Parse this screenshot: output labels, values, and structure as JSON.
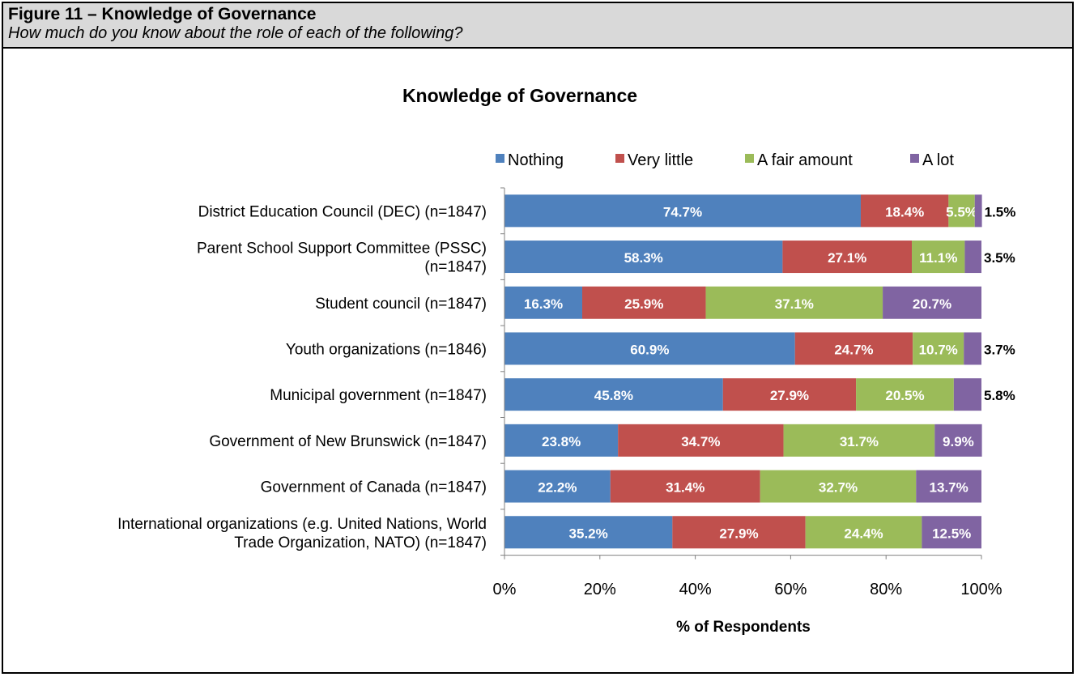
{
  "figure": {
    "title": "Figure 11 – Knowledge of Governance",
    "subtitle": "How much do you know about the role of each of the following?"
  },
  "chart_data": {
    "type": "bar",
    "orientation": "horizontal",
    "stacked": true,
    "title": "Knowledge of Governance",
    "xlabel": "% of Respondents",
    "ylabel": "",
    "xlim": [
      0,
      100
    ],
    "x_ticks": [
      "0%",
      "20%",
      "40%",
      "60%",
      "80%",
      "100%"
    ],
    "legend_position": "top",
    "categories": [
      "District Education Council (DEC)  (n=1847)",
      "Parent School Support Committee (PSSC) (n=1847)",
      "Student council (n=1847)",
      "Youth organizations (n=1846)",
      "Municipal government (n=1847)",
      "Government of New Brunswick (n=1847)",
      "Government of Canada (n=1847)",
      "International organizations (e.g. United Nations, World Trade Organization, NATO) (n=1847)"
    ],
    "category_lines": [
      [
        "District Education Council (DEC)  (n=1847)"
      ],
      [
        "Parent School Support Committee (PSSC)",
        "(n=1847)"
      ],
      [
        "Student council (n=1847)"
      ],
      [
        "Youth organizations (n=1846)"
      ],
      [
        "Municipal government (n=1847)"
      ],
      [
        "Government of New Brunswick (n=1847)"
      ],
      [
        "Government of Canada (n=1847)"
      ],
      [
        "International organizations (e.g. United Nations, World",
        "Trade Organization, NATO) (n=1847)"
      ]
    ],
    "series": [
      {
        "name": "Nothing",
        "color": "#4f81bd",
        "values": [
          74.7,
          58.3,
          16.3,
          60.9,
          45.8,
          23.8,
          22.2,
          35.2
        ]
      },
      {
        "name": "Very little",
        "color": "#c0504d",
        "values": [
          18.4,
          27.1,
          25.9,
          24.7,
          27.9,
          34.7,
          31.4,
          27.9
        ]
      },
      {
        "name": "A fair amount",
        "color": "#9bbb59",
        "values": [
          5.5,
          11.1,
          37.1,
          10.7,
          20.5,
          31.7,
          32.7,
          24.4
        ]
      },
      {
        "name": "A lot",
        "color": "#8064a2",
        "values": [
          1.5,
          3.5,
          20.7,
          3.7,
          5.8,
          9.9,
          13.7,
          12.5
        ]
      }
    ],
    "data_labels": [
      [
        "74.7%",
        "18.4%",
        "5.5%",
        "1.5%"
      ],
      [
        "58.3%",
        "27.1%",
        "11.1%",
        "3.5%"
      ],
      [
        "16.3%",
        "25.9%",
        "37.1%",
        "20.7%"
      ],
      [
        "60.9%",
        "24.7%",
        "10.7%",
        "3.7%"
      ],
      [
        "45.8%",
        "27.9%",
        "20.5%",
        "5.8%"
      ],
      [
        "23.8%",
        "34.7%",
        "31.7%",
        "9.9%"
      ],
      [
        "22.2%",
        "31.4%",
        "32.7%",
        "13.7%"
      ],
      [
        "35.2%",
        "27.9%",
        "24.4%",
        "12.5%"
      ]
    ]
  }
}
